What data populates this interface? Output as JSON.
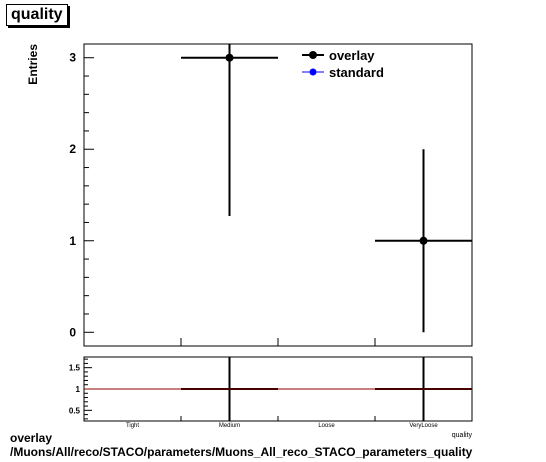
{
  "title": "quality",
  "footer": {
    "line1": "overlay",
    "line2": "/Muons/All/reco/STACO/parameters/Muons_All_reco_STACO_parameters_quality"
  },
  "colors": {
    "overlay": "#000000",
    "standard": "#0000ff",
    "ratio_line": "#8b0000"
  },
  "chart_data": [
    {
      "type": "scatter",
      "ylabel": "Entries",
      "ylim": [
        -0.15,
        3.15
      ],
      "yticks": [
        0,
        1,
        2,
        3
      ],
      "x_bins": 4,
      "legend_position": "top-right",
      "series": [
        {
          "name": "overlay",
          "points": [
            {
              "bin": 1,
              "x_err": 0.5,
              "y": 3,
              "y_low": 1.27,
              "y_high": 3.15
            },
            {
              "bin": 3,
              "x_err": 0.5,
              "y": 1,
              "y_low": 0,
              "y_high": 2
            }
          ]
        },
        {
          "name": "standard",
          "points": []
        }
      ]
    },
    {
      "type": "line",
      "categories": [
        "Tight",
        "Medium",
        "Loose",
        "VeryLoose"
      ],
      "xlabel": "quality",
      "ylim": [
        0.25,
        1.75
      ],
      "yticks": [
        0.5,
        1,
        1.5
      ],
      "reference": 1,
      "ratio_points": [
        {
          "bin": 1,
          "y": 1
        },
        {
          "bin": 3,
          "y": 1
        }
      ]
    }
  ]
}
